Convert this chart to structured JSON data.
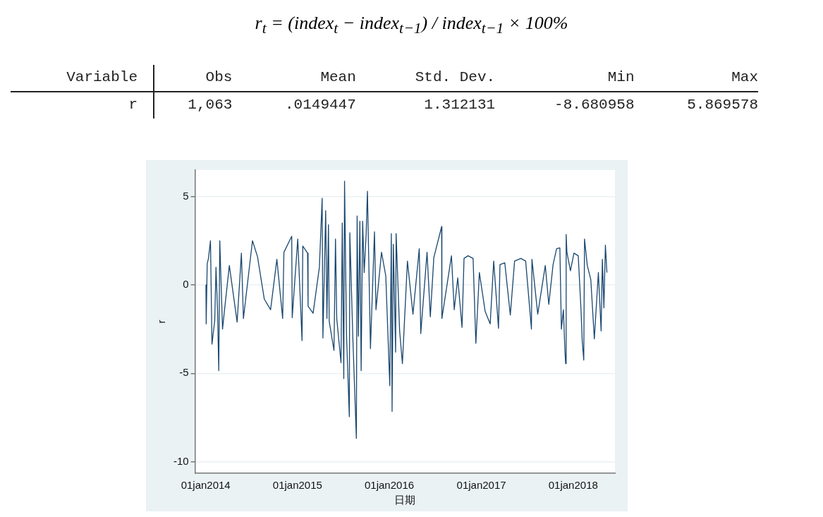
{
  "chart_data": {
    "type": "line",
    "xlabel": "日期",
    "ylabel": "r",
    "grid": "y",
    "marker": "none",
    "line_style": "solid",
    "annotations": [
      "r$_{t}$ = (index$_{t}$ − index$_{t−1}$) / index$_{t−1}$ × 100%",
      "Variable",
      "Obs",
      "Mean",
      "Std. Dev.",
      "Min",
      "Max",
      "r",
      "1,063",
      ".0149447",
      "1.312131",
      "-8.680958",
      "5.869578"
    ],
    "xlim": [
      "2013-11-20",
      "2018-06-16"
    ],
    "xticks": [
      {
        "value": "2014-01-01",
        "label": "01jan2014"
      },
      {
        "value": "2015-01-01",
        "label": "01jan2015"
      },
      {
        "value": "2016-01-01",
        "label": "01jan2016"
      },
      {
        "value": "2017-01-01",
        "label": "01jan2017"
      },
      {
        "value": "2018-01-01",
        "label": "01jan2018"
      }
    ],
    "ylim": [
      -10.65,
      6.5
    ],
    "yticks": [
      -10,
      -5,
      0,
      5
    ],
    "series": [
      {
        "color": "#1a476f",
        "x": [
          "2014-01-02",
          "2014-01-03",
          "2014-01-07",
          "2014-01-12",
          "2014-01-20",
          "2014-01-26",
          "2014-02-06",
          "2014-02-11",
          "2014-02-17",
          "2014-02-22",
          "2014-02-26",
          "2014-03-09",
          "2014-03-17",
          "2014-04-05",
          "2014-05-06",
          "2014-05-23",
          "2014-05-31",
          "2014-07-06",
          "2014-07-26",
          "2014-08-22",
          "2014-09-16",
          "2014-10-11",
          "2014-11-03",
          "2014-11-08",
          "2014-12-09",
          "2014-12-11",
          "2015-01-02",
          "2015-01-19",
          "2015-01-22",
          "2015-02-10",
          "2015-02-12",
          "2015-03-04",
          "2015-03-29",
          "2015-04-09",
          "2015-04-12",
          "2015-04-23",
          "2015-04-28",
          "2015-05-04",
          "2015-05-07",
          "2015-05-26",
          "2015-06-01",
          "2015-06-06",
          "2015-06-23",
          "2015-06-28",
          "2015-07-04",
          "2015-07-07",
          "2015-07-15",
          "2015-07-26",
          "2015-07-28",
          "2015-08-09",
          "2015-08-23",
          "2015-08-26",
          "2015-08-31",
          "2015-09-06",
          "2015-09-11",
          "2015-09-17",
          "2015-09-23",
          "2015-10-01",
          "2015-10-06",
          "2015-10-18",
          "2015-11-03",
          "2015-11-09",
          "2015-12-01",
          "2015-12-18",
          "2015-12-29",
          "2016-01-03",
          "2016-01-09",
          "2016-01-12",
          "2016-01-17",
          "2016-01-26",
          "2016-01-28",
          "2016-02-11",
          "2016-02-22",
          "2016-03-13",
          "2016-04-04",
          "2016-04-29",
          "2016-05-05",
          "2016-05-30",
          "2016-06-12",
          "2016-06-26",
          "2016-07-27",
          "2016-07-28",
          "2016-09-04",
          "2016-09-15",
          "2016-09-29",
          "2016-10-16",
          "2016-10-24",
          "2016-11-09",
          "2016-11-29",
          "2016-12-10",
          "2016-12-24",
          "2017-01-16",
          "2017-02-05",
          "2017-02-19",
          "2017-03-10",
          "2017-03-16",
          "2017-04-04",
          "2017-04-26",
          "2017-05-13",
          "2017-06-07",
          "2017-06-26",
          "2017-07-19",
          "2017-07-21",
          "2017-08-13",
          "2017-09-12",
          "2017-09-26",
          "2017-10-13",
          "2017-10-27",
          "2017-11-09",
          "2017-11-15",
          "2017-11-23",
          "2017-11-29",
          "2017-12-02",
          "2017-12-04",
          "2017-12-07",
          "2017-12-21",
          "2018-01-04",
          "2018-01-21",
          "2018-02-01",
          "2018-02-06",
          "2018-02-12",
          "2018-02-15",
          "2018-02-26",
          "2018-03-12",
          "2018-03-26",
          "2018-04-11",
          "2018-04-22",
          "2018-04-27",
          "2018-05-03",
          "2018-05-09",
          "2018-05-15"
        ],
        "values": [
          0,
          -2.2,
          1.2,
          1.5,
          2.5,
          -3.35,
          -2.0,
          1.0,
          -1.4,
          -4.85,
          2.5,
          -2.5,
          -1.4,
          1.1,
          -2.1,
          1.8,
          -1.9,
          2.5,
          1.6,
          -0.8,
          -1.4,
          1.45,
          -1.9,
          1.85,
          2.75,
          -1.85,
          2.6,
          -3.15,
          2.2,
          1.8,
          -1.2,
          -1.6,
          1.0,
          4.9,
          -3.0,
          4.2,
          -1.9,
          3.4,
          -2.05,
          -3.7,
          2.6,
          -1.9,
          -4.4,
          3.5,
          -5.3,
          5.87,
          -2.9,
          -7.45,
          2.95,
          -3.0,
          -8.68,
          3.9,
          -2.9,
          3.6,
          -4.85,
          3.6,
          0.7,
          2.9,
          5.3,
          -3.6,
          3.0,
          -1.4,
          1.85,
          0.5,
          -3.8,
          -5.7,
          2.9,
          -7.15,
          2.3,
          -3.8,
          2.9,
          -2.6,
          -4.45,
          1.35,
          -1.65,
          2.05,
          -2.75,
          1.85,
          -1.8,
          1.55,
          3.3,
          -1.9,
          1.65,
          -1.4,
          0.4,
          -2.4,
          1.5,
          1.65,
          1.5,
          -3.3,
          0.7,
          -1.5,
          -2.2,
          1.35,
          -2.45,
          1.15,
          1.25,
          -1.7,
          1.35,
          1.5,
          1.35,
          -2.5,
          1.45,
          -1.65,
          1.1,
          -1.1,
          1.15,
          2.05,
          2.1,
          -2.5,
          -1.4,
          -3.7,
          -4.45,
          2.85,
          1.85,
          0.8,
          1.8,
          1.65,
          -1.4,
          -3.2,
          -4.25,
          2.6,
          1.1,
          0.3,
          -3.05,
          0.7,
          -2.6,
          1.45,
          -1.3,
          2.25,
          0.7
        ]
      }
    ]
  }
}
